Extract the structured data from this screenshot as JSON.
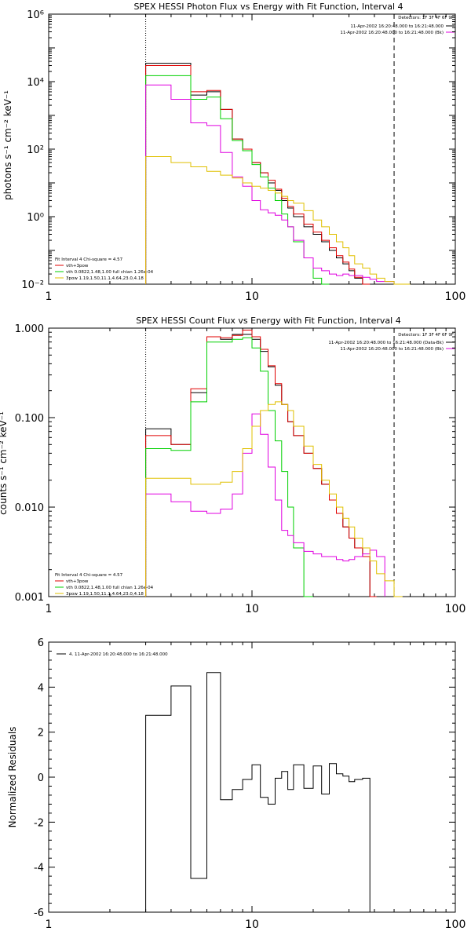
{
  "chart_data": [
    {
      "type": "line",
      "title": "SPEX HESSI Photon Flux vs Energy with Fit Function, Interval 4",
      "ylabel": "photons s⁻¹ cm⁻² keV⁻¹",
      "xlabel": "",
      "xscale": "log",
      "yscale": "log",
      "xlim": [
        1,
        100
      ],
      "ylim": [
        0.01,
        1000000
      ],
      "x_ticks": [
        {
          "value": 1,
          "label": "1"
        },
        {
          "value": 10,
          "label": "10"
        },
        {
          "value": 100,
          "label": "100"
        }
      ],
      "y_ticks": [
        {
          "value": 0.01,
          "label": "10⁻²"
        },
        {
          "value": 1,
          "label": "10⁰"
        },
        {
          "value": 100,
          "label": "10²"
        },
        {
          "value": 10000,
          "label": "10⁴"
        },
        {
          "value": 1000000,
          "label": "10⁶"
        }
      ],
      "vlines": [
        {
          "x": 3,
          "style": "dotted"
        },
        {
          "x": 50,
          "style": "dashed"
        }
      ],
      "legend_top": {
        "position": "top-right",
        "line1": "Detectors: 1F 3F 4F 6F 9F",
        "entries": [
          {
            "text": "11-Apr-2002 16:20:48.000 to 16:21:48.000",
            "color": "#000000"
          },
          {
            "text": "11-Apr-2002 16:20:48.000 to 16:21:48.000 (Bk)",
            "color": "#e000e0"
          }
        ]
      },
      "legend_bottom": {
        "position": "bottom-left",
        "header": "Fit Interval 4   Chi-square = 4.57",
        "entries": [
          {
            "text": "vth+3pow",
            "color": "#e00000"
          },
          {
            "text": "vth 0.0822,1.48,1.00  full chian 1.26e-04",
            "color": "#00d000"
          },
          {
            "text": "3pow 1.19,1.50,11.1,4.64,23.0,4.18",
            "color": "#e0c000"
          }
        ]
      },
      "bin_edges": [
        3,
        4,
        5,
        6,
        7,
        8,
        9,
        10,
        11,
        12,
        13,
        14,
        15,
        16,
        18,
        20,
        22,
        24,
        26,
        28,
        30,
        32,
        35,
        38,
        41,
        45,
        50,
        55,
        60
      ],
      "series": [
        {
          "color": "#000000",
          "values": [
            35000,
            35000,
            4000,
            5000,
            1500,
            200,
            100,
            40,
            20,
            10,
            6,
            3,
            1.8,
            1,
            0.5,
            0.3,
            0.18,
            0.1,
            0.06,
            0.04,
            0.025,
            0.015,
            null,
            null,
            null,
            null,
            null,
            null
          ]
        },
        {
          "color": "#e00000",
          "values": [
            30000,
            30000,
            5000,
            5500,
            1500,
            200,
            100,
            40,
            20,
            12,
            6.5,
            3.5,
            2,
            1.2,
            0.6,
            0.35,
            0.2,
            0.12,
            0.07,
            0.045,
            0.028,
            0.016,
            0.01,
            null,
            null,
            null,
            null,
            null
          ]
        },
        {
          "color": "#00d000",
          "values": [
            15000,
            15000,
            3000,
            3500,
            800,
            180,
            90,
            35,
            15,
            7,
            3,
            1.2,
            0.5,
            0.18,
            0.06,
            0.015,
            0.005,
            null,
            null,
            null,
            null,
            null,
            null,
            null,
            null,
            null,
            null,
            null
          ]
        },
        {
          "color": "#e000e0",
          "values": [
            8000,
            3000,
            600,
            500,
            80,
            15,
            8,
            3,
            1.6,
            1.3,
            1.1,
            0.8,
            0.5,
            0.2,
            0.06,
            0.03,
            0.025,
            0.02,
            0.018,
            0.02,
            0.018,
            0.018,
            0.016,
            0.014,
            0.012,
            0.012,
            null,
            null
          ]
        },
        {
          "color": "#e0c000",
          "values": [
            60,
            40,
            30,
            22,
            17,
            14,
            10,
            8,
            7,
            6,
            5,
            4,
            3,
            2.5,
            1.5,
            0.8,
            0.5,
            0.3,
            0.18,
            0.12,
            0.07,
            0.04,
            0.03,
            0.02,
            0.015,
            0.012,
            0.01,
            0.005
          ]
        }
      ]
    },
    {
      "type": "line",
      "title": "SPEX HESSI Count Flux vs Energy with Fit Function, Interval 4",
      "ylabel": "counts s⁻¹ cm⁻² keV⁻¹",
      "xlabel": "",
      "xscale": "log",
      "yscale": "log",
      "xlim": [
        1,
        100
      ],
      "ylim": [
        0.001,
        1.0
      ],
      "x_ticks": [
        {
          "value": 1,
          "label": "1"
        },
        {
          "value": 10,
          "label": "10"
        },
        {
          "value": 100,
          "label": "100"
        }
      ],
      "y_ticks": [
        {
          "value": 0.001,
          "label": "0.001"
        },
        {
          "value": 0.01,
          "label": "0.010"
        },
        {
          "value": 0.1,
          "label": "0.100"
        },
        {
          "value": 1.0,
          "label": "1.000"
        }
      ],
      "vlines": [
        {
          "x": 3,
          "style": "dotted"
        },
        {
          "x": 50,
          "style": "dashed"
        }
      ],
      "legend_top": {
        "position": "top-right",
        "line1": "Detectors: 1F 3F 4F 6F 9F",
        "entries": [
          {
            "text": "11-Apr-2002 16:20:48.000 to 16:21:48.000 (Data-Bk)",
            "color": "#000000"
          },
          {
            "text": "11-Apr-2002 16:20:48.000 to 16:21:48.000 (Bk)",
            "color": "#e000e0"
          }
        ]
      },
      "legend_bottom": {
        "position": "bottom-left",
        "header": "Fit Interval 4   Chi-square = 4.57",
        "entries": [
          {
            "text": "vth+3pow",
            "color": "#e00000"
          },
          {
            "text": "vth 0.0822,1.48,1.00  full chian 1.26e-04",
            "color": "#00d000"
          },
          {
            "text": "3pow 1.19,1.50,11.1,4.64,23.0,4.18",
            "color": "#e0c000"
          }
        ]
      },
      "bin_edges": [
        3,
        4,
        5,
        6,
        7,
        8,
        9,
        10,
        11,
        12,
        13,
        14,
        15,
        16,
        18,
        20,
        22,
        24,
        26,
        28,
        30,
        32,
        35,
        38,
        41,
        45,
        50,
        55,
        60
      ],
      "series": [
        {
          "color": "#000000",
          "values": [
            0.075,
            0.05,
            0.19,
            0.8,
            0.75,
            0.85,
            0.85,
            0.75,
            0.55,
            0.37,
            0.23,
            0.14,
            0.09,
            0.063,
            0.04,
            0.027,
            0.018,
            0.012,
            0.0085,
            0.006,
            0.0045,
            0.0035,
            0.0028,
            0.001,
            null,
            null,
            null,
            null
          ]
        },
        {
          "color": "#e00000",
          "values": [
            0.063,
            0.05,
            0.21,
            0.8,
            0.78,
            0.83,
            0.95,
            0.8,
            0.58,
            0.38,
            0.24,
            0.14,
            0.09,
            0.063,
            0.04,
            0.027,
            0.018,
            0.012,
            0.0085,
            0.006,
            0.0045,
            0.0035,
            0.0028,
            0.001,
            null,
            null,
            null,
            null
          ]
        },
        {
          "color": "#00d000",
          "values": [
            0.045,
            0.043,
            0.15,
            0.7,
            0.7,
            0.75,
            0.78,
            0.6,
            0.33,
            0.12,
            0.055,
            0.025,
            0.01,
            0.0035,
            0.001,
            null,
            null,
            null,
            null,
            null,
            null,
            null,
            null,
            null,
            null,
            null,
            null,
            null
          ]
        },
        {
          "color": "#e000e0",
          "values": [
            0.014,
            0.0115,
            0.009,
            0.0085,
            0.0095,
            0.014,
            0.04,
            0.11,
            0.065,
            0.028,
            0.012,
            0.0055,
            0.0048,
            0.004,
            0.0032,
            0.003,
            0.0028,
            0.0028,
            0.0026,
            0.0025,
            0.0026,
            0.0028,
            0.003,
            0.0033,
            0.0028,
            null,
            null,
            null
          ]
        },
        {
          "color": "#e0c000",
          "values": [
            0.021,
            0.021,
            0.018,
            0.018,
            0.019,
            0.025,
            0.045,
            0.08,
            0.12,
            0.14,
            0.15,
            0.14,
            0.12,
            0.08,
            0.048,
            0.03,
            0.02,
            0.014,
            0.01,
            0.0075,
            0.006,
            0.0045,
            0.0035,
            0.0025,
            0.0018,
            0.0015,
            0.001,
            null
          ]
        }
      ]
    },
    {
      "type": "line",
      "title": "",
      "ylabel": "Normalized Residuals",
      "xlabel": "",
      "xscale": "log",
      "yscale": "linear",
      "xlim": [
        1,
        100
      ],
      "ylim": [
        -6,
        6
      ],
      "x_ticks": [
        {
          "value": 1,
          "label": "1"
        },
        {
          "value": 10,
          "label": "10"
        },
        {
          "value": 100,
          "label": "100"
        }
      ],
      "y_ticks": [
        {
          "value": -6,
          "label": "-6"
        },
        {
          "value": -4,
          "label": "-4"
        },
        {
          "value": -2,
          "label": "-2"
        },
        {
          "value": 0,
          "label": "0"
        },
        {
          "value": 2,
          "label": "2"
        },
        {
          "value": 4,
          "label": "4"
        },
        {
          "value": 6,
          "label": "6"
        }
      ],
      "legend": {
        "position": "top-left",
        "entries": [
          {
            "text": "4. 11-Apr-2002 16:20:48.000 to 16:21:48.000",
            "color": "#000000"
          }
        ]
      },
      "bin_edges": [
        3,
        4,
        5,
        6,
        7,
        8,
        9,
        10,
        11,
        12,
        13,
        14,
        15,
        16,
        18,
        20,
        22,
        24,
        26,
        28,
        30,
        32,
        35,
        38,
        41,
        45,
        50
      ],
      "series": [
        {
          "color": "#000000",
          "values": [
            2.75,
            4.05,
            -4.5,
            4.65,
            -1.0,
            -0.55,
            -0.1,
            0.55,
            -0.9,
            -1.2,
            -0.05,
            0.25,
            -0.55,
            0.55,
            -0.5,
            0.5,
            -0.75,
            0.6,
            0.15,
            0.05,
            -0.2,
            -0.1,
            -0.05,
            null,
            null,
            null
          ]
        }
      ]
    }
  ]
}
